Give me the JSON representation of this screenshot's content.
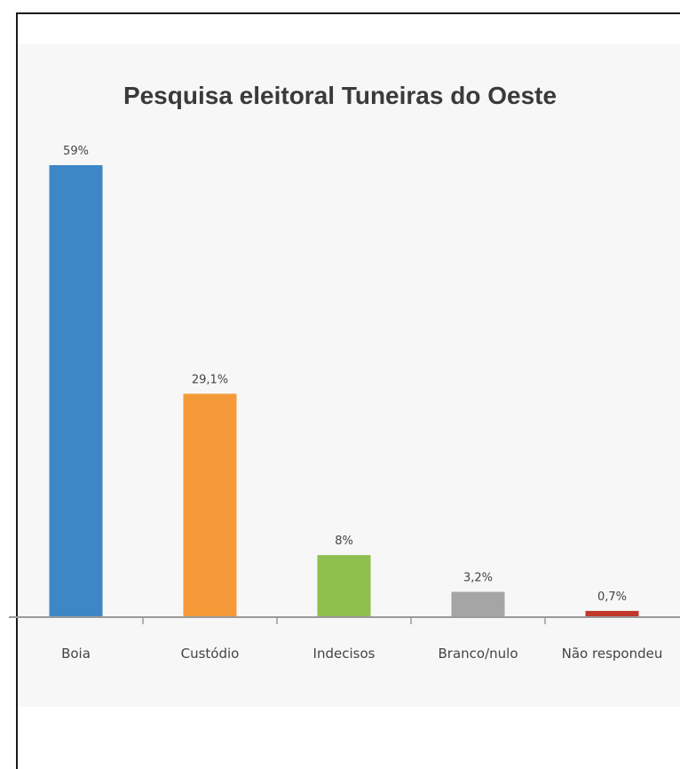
{
  "chart_data": {
    "type": "bar",
    "title": "Pesquisa eleitoral Tuneiras do Oeste",
    "categories": [
      "Boia",
      "Custódio",
      "Indecisos",
      "Branco/nulo",
      "Não respondeu"
    ],
    "values": [
      59,
      29.1,
      8,
      3.2,
      0.7
    ],
    "value_labels": [
      "59%",
      "29,1%",
      "8%",
      "3,2%",
      "0,7%"
    ],
    "colors": [
      "#3d87c6",
      "#f49a38",
      "#8fbf4f",
      "#a5a5a5",
      "#c0392b"
    ],
    "ylim": [
      0,
      59
    ],
    "grid": false,
    "legend": "none"
  }
}
